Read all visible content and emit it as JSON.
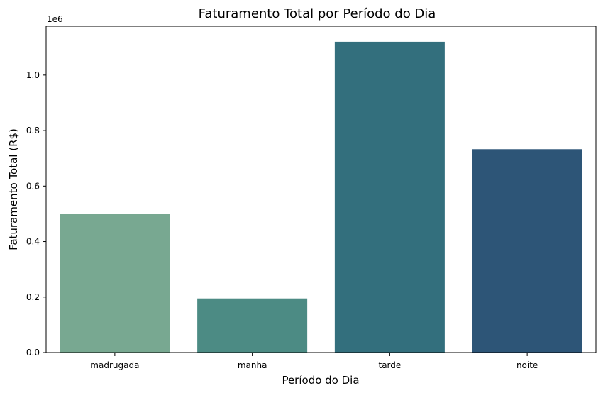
{
  "chart_data": {
    "type": "bar",
    "title": "Faturamento Total por Período do Dia",
    "xlabel": "Período do Dia",
    "ylabel": "Faturamento Total (R$)",
    "y_offset_label": "1e6",
    "categories": [
      "madrugada",
      "manha",
      "tarde",
      "noite"
    ],
    "values": [
      500000,
      195000,
      1120000,
      733000
    ],
    "colors": [
      "#78a891",
      "#4c8b84",
      "#336f7d",
      "#2d5577"
    ],
    "ylim": [
      0,
      1176000
    ],
    "yticks": [
      0,
      200000,
      400000,
      600000,
      800000,
      1000000
    ],
    "ytick_labels": [
      "0.0",
      "0.2",
      "0.4",
      "0.6",
      "0.8",
      "1.0"
    ],
    "grid": false,
    "legend": "none"
  }
}
